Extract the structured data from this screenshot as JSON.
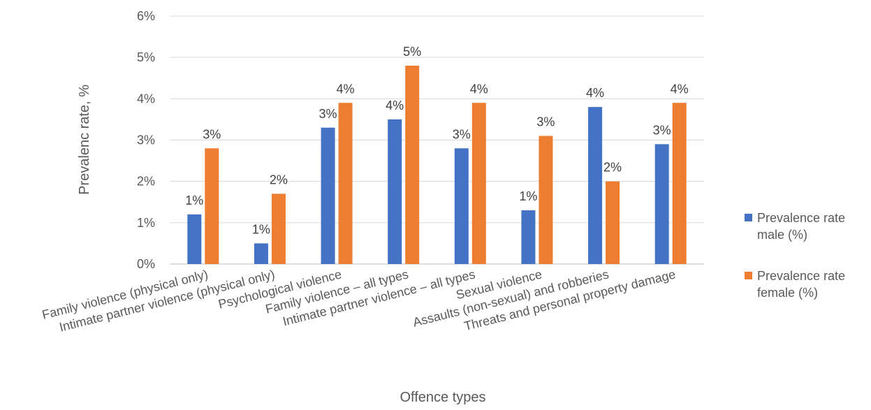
{
  "chart_data": {
    "type": "bar",
    "xlabel": "Offence types",
    "ylabel": "Prevalenc rate, %",
    "ylim": [
      0,
      6
    ],
    "yticks": [
      "0%",
      "1%",
      "2%",
      "3%",
      "4%",
      "5%",
      "6%"
    ],
    "grid": true,
    "legend_position": "right",
    "categories": [
      "Family violence (physical only)",
      "Intimate partner violence (physical only)",
      "Psychological violence",
      "Family violence – all types",
      "Intimate partner violence – all types",
      "Sexual violence",
      "Assaults (non-sexual) and robberies",
      "Threats and personal property damage"
    ],
    "series": [
      {
        "name": "Prevalence rate male (%)",
        "color": "#4472C4",
        "values": [
          1.2,
          0.5,
          3.3,
          3.5,
          2.8,
          1.3,
          3.8,
          2.9
        ],
        "labels": [
          "1%",
          "1%",
          "3%",
          "4%",
          "3%",
          "1%",
          "4%",
          "3%"
        ]
      },
      {
        "name": "Prevalence rate female (%)",
        "color": "#ED7D31",
        "values": [
          2.8,
          1.7,
          3.9,
          4.8,
          3.9,
          3.1,
          2.0,
          3.9
        ],
        "labels": [
          "3%",
          "2%",
          "4%",
          "5%",
          "4%",
          "3%",
          "2%",
          "4%"
        ]
      }
    ]
  }
}
